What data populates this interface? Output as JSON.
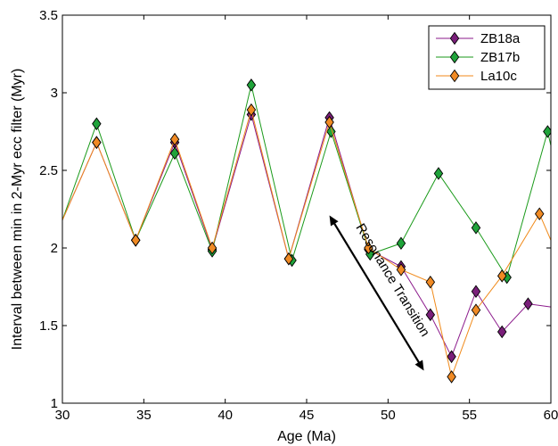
{
  "chart_data": {
    "type": "line",
    "xlabel": "Age (Ma)",
    "ylabel": "Interval between min in 2-Myr ecc filter (Myr)",
    "xlim": [
      30,
      60
    ],
    "ylim": [
      1,
      3.5
    ],
    "xticks": [
      30,
      35,
      40,
      45,
      50,
      55,
      60
    ],
    "yticks": [
      1,
      1.5,
      2,
      2.5,
      3,
      3.5
    ],
    "x_tick_labels": [
      "30",
      "35",
      "40",
      "45",
      "50",
      "55",
      "60"
    ],
    "y_tick_labels": [
      "1",
      "1.5",
      "2",
      "2.5",
      "3",
      "3.5"
    ],
    "grid": false,
    "legend_position": "top-right",
    "annotation": {
      "text": "Resonance Transition",
      "arrow_from": [
        46.4,
        2.21
      ],
      "arrow_to": [
        52.2,
        1.21
      ]
    },
    "series": [
      {
        "name": "ZB18a",
        "color": "#8b1a8b",
        "marker_color": "#7a1f7a",
        "x": [
          30.0,
          32.1,
          34.5,
          36.9,
          39.2,
          41.6,
          43.9,
          46.4,
          48.8,
          50.8,
          52.6,
          53.9,
          55.4,
          57.0,
          58.6,
          60.0
        ],
        "y": [
          2.18,
          2.68,
          2.05,
          2.68,
          1.99,
          2.86,
          1.93,
          2.84,
          1.99,
          1.88,
          1.57,
          1.3,
          1.72,
          1.46,
          1.64,
          1.62
        ]
      },
      {
        "name": "ZB17b",
        "color": "#1a9a1a",
        "marker_color": "#1fa33a",
        "x": [
          30.0,
          32.1,
          34.5,
          36.9,
          39.2,
          41.6,
          44.1,
          46.5,
          48.9,
          50.8,
          53.1,
          55.4,
          57.3,
          59.8,
          60.0
        ],
        "y": [
          2.18,
          2.8,
          2.05,
          2.61,
          1.98,
          3.05,
          1.92,
          2.75,
          1.96,
          2.03,
          2.48,
          2.13,
          1.81,
          2.75,
          2.66
        ]
      },
      {
        "name": "La10c",
        "color": "#f08a1a",
        "marker_color": "#f08a24",
        "x": [
          30.0,
          32.1,
          34.5,
          36.9,
          39.2,
          41.6,
          43.9,
          46.4,
          48.8,
          50.8,
          52.6,
          53.9,
          55.4,
          57.0,
          59.3,
          60.0
        ],
        "y": [
          2.18,
          2.68,
          2.05,
          2.7,
          2.0,
          2.89,
          1.93,
          2.81,
          2.0,
          1.86,
          1.78,
          1.17,
          1.6,
          1.82,
          2.22,
          2.05
        ]
      }
    ]
  }
}
